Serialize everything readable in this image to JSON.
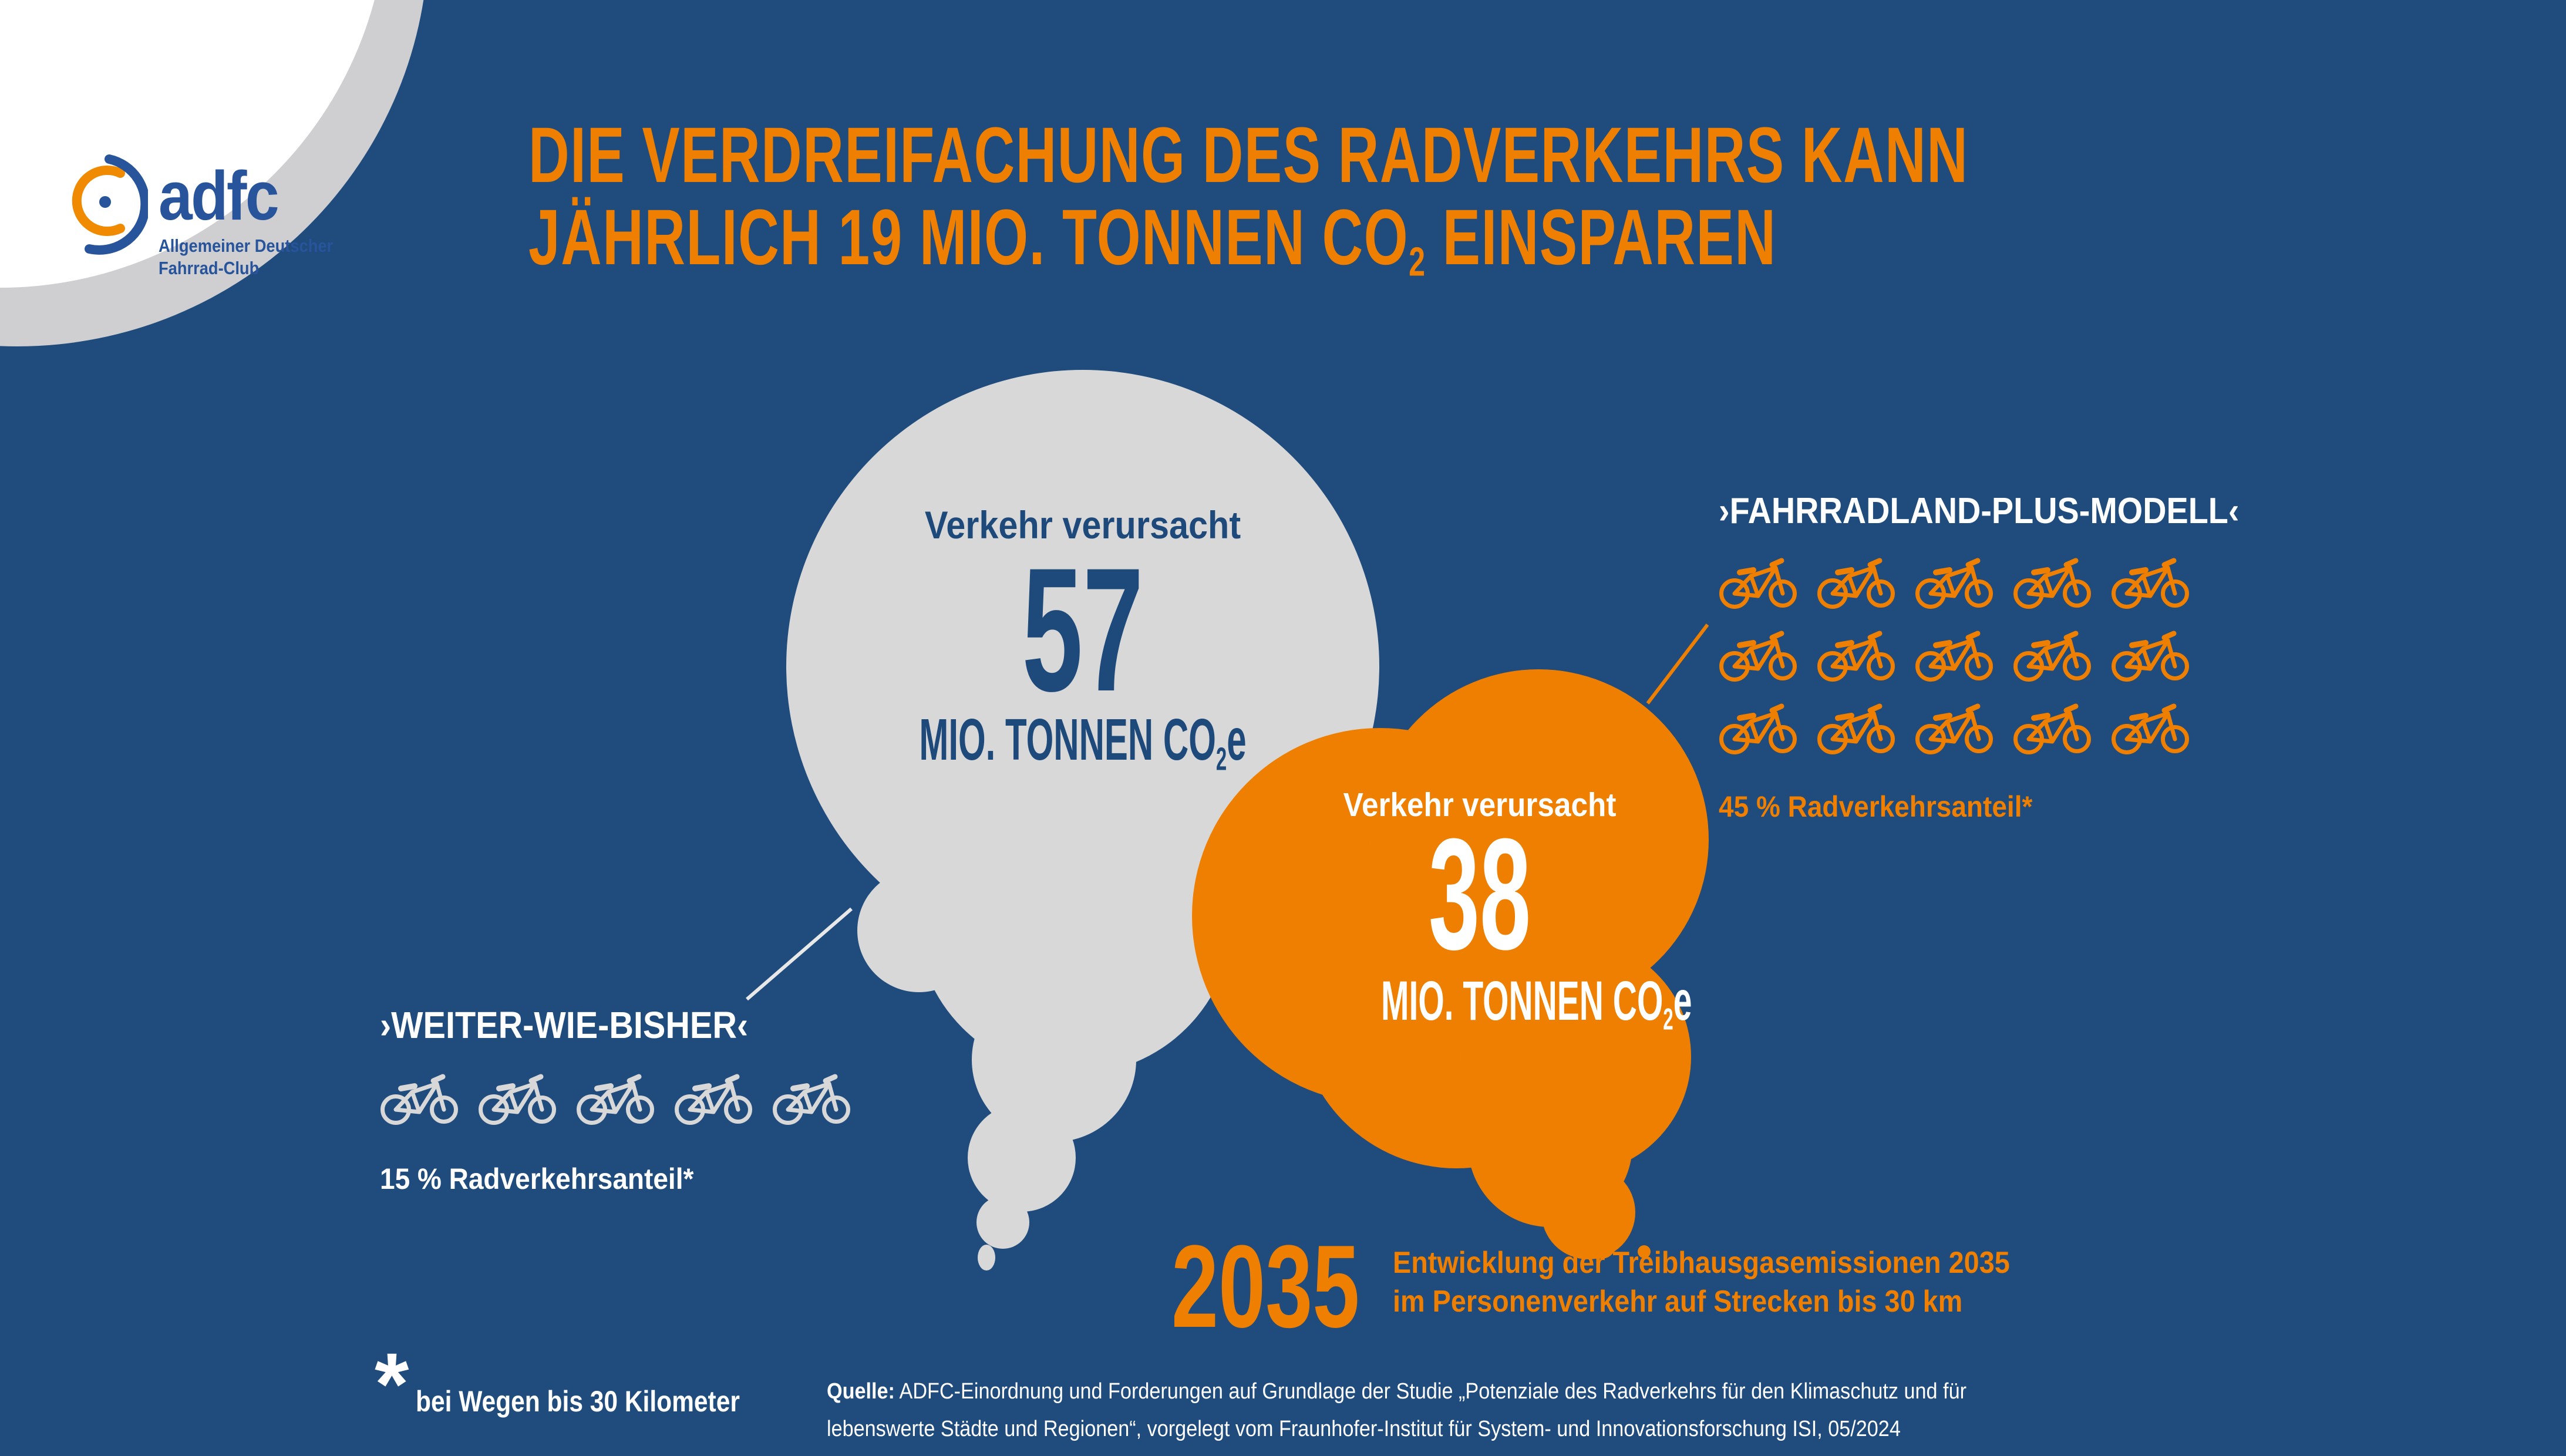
{
  "logo": {
    "brand": "adfc",
    "subtitle_line1": "Allgemeiner Deutscher",
    "subtitle_line2": "Fahrrad-Club"
  },
  "title": {
    "line1": "DIE VERDREIFACHUNG DES RADVERKEHRS KANN",
    "line2_pre": "JÄHRLICH 19 MIO. TONNEN CO",
    "line2_sub": "2",
    "line2_post": " EINSPAREN"
  },
  "clouds": {
    "gray": {
      "label": "Verkehr verursacht",
      "value": "57",
      "unit_pre": "MIO. TONNEN CO",
      "unit_sub": "2",
      "unit_post": "e"
    },
    "orange": {
      "label": "Verkehr verursacht",
      "value": "38",
      "unit_pre": "MIO. TONNEN CO",
      "unit_sub": "2",
      "unit_post": "e"
    }
  },
  "scenarios": {
    "baseline": {
      "title": "›WEITER-WIE-BISHER‹",
      "share": "15 % Radverkehrsanteil*",
      "bike_count": 5,
      "per_row": 5
    },
    "plus": {
      "title": "›FAHRRADLAND-PLUS-MODELL‹",
      "share": "45 % Radverkehrsanteil*",
      "bike_count": 15,
      "per_row": 5
    }
  },
  "footer": {
    "year": "2035",
    "caption_line1": "Entwicklung der Treibhausgasemissionen 2035",
    "caption_line2": "im Personenverkehr auf Strecken bis 30 km",
    "footnote_star": "*",
    "footnote": "bei Wegen bis 30 Kilometer",
    "source_label": "Quelle:",
    "source_line1": " ADFC-Einordnung und Forderungen auf Grundlage der Studie „Potenziale des Radverkehrs für den Klimaschutz und für",
    "source_line2": "lebenswerte Städte und Regionen“, vorgelegt vom Fraunhofer-Institut für System- und Innovationsforschung ISI, 05/2024"
  },
  "colors": {
    "background": "#1F4B7D",
    "orange": "#EE7F00",
    "gray": "#D8D8D8",
    "white": "#FFFFFF",
    "logo_blue": "#27549B",
    "text_blue": "#1E4A7B"
  },
  "chart_data": {
    "type": "bar",
    "title": "Die Verdreifachung des Radverkehrs kann jährlich 19 Mio. Tonnen CO2 einsparen",
    "subtitle": "Entwicklung der Treibhausgasemissionen 2035 im Personenverkehr auf Strecken bis 30 km",
    "year": "2035",
    "unit": "Mio. Tonnen CO2e",
    "categories": [
      "›Weiter-wie-bisher‹ (15 % Radverkehrsanteil, bei Wegen bis 30 Kilometer)",
      "›Fahrradland-Plus-Modell‹ (45 % Radverkehrsanteil, bei Wegen bis 30 Kilometer)"
    ],
    "values": [
      57,
      38
    ],
    "savings_mio_tonnen_co2": 19,
    "pictogram_bike_counts": [
      5,
      15
    ],
    "source": "ADFC-Einordnung und Forderungen auf Grundlage der Studie „Potenziale des Radverkehrs für den Klimaschutz und für lebenswerte Städte und Regionen“, vorgelegt vom Fraunhofer-Institut für System- und Innovationsforschung ISI, 05/2024"
  }
}
